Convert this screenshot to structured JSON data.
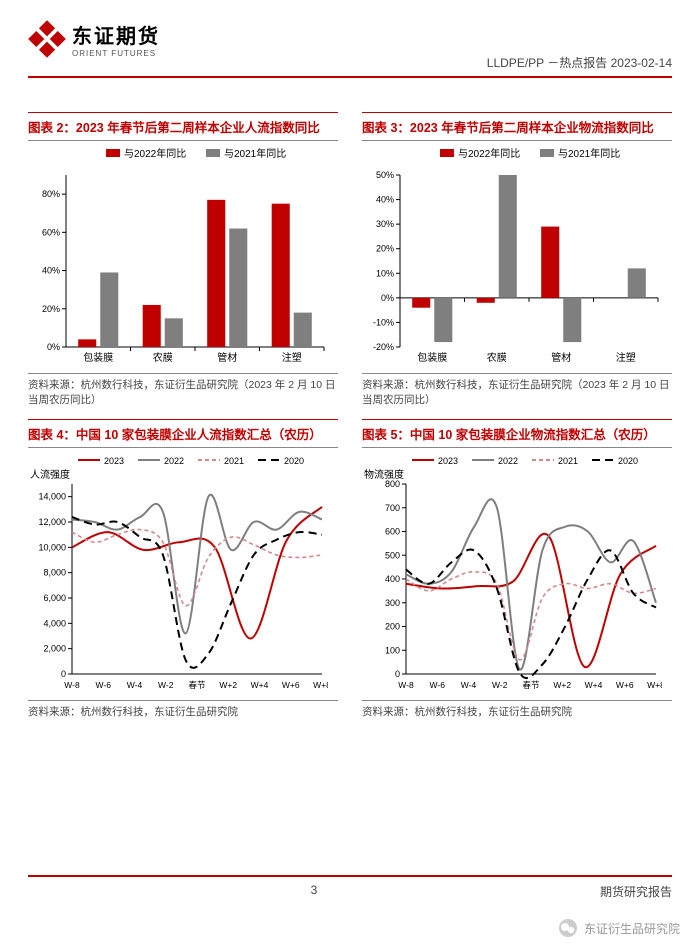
{
  "header": {
    "brand_cn": "东证期货",
    "brand_en": "ORIENT FUTURES",
    "right": "LLDPE/PP －热点报告 2023-02-14"
  },
  "footer": {
    "page": "3",
    "right": "期货研究报告",
    "watermark": "东证衍生品研究院"
  },
  "chart2": {
    "type": "bar",
    "title": "图表 2：2023 年春节后第二周样本企业人流指数同比",
    "legend": [
      {
        "label": "与2022年同比",
        "color": "#c00000"
      },
      {
        "label": "与2021年同比",
        "color": "#7f7f7f"
      }
    ],
    "categories": [
      "包装膜",
      "农膜",
      "管材",
      "注塑"
    ],
    "series": [
      {
        "color": "#c00000",
        "values": [
          4,
          22,
          77,
          75
        ]
      },
      {
        "color": "#7f7f7f",
        "values": [
          39,
          15,
          62,
          18
        ]
      }
    ],
    "ylim": [
      0,
      90
    ],
    "yticks": [
      0,
      20,
      40,
      60,
      80
    ],
    "ytick_suffix": "%",
    "bg": "#ffffff",
    "tick_fs": 9,
    "source": "资料来源：杭州数行科技，东证衍生品研究院（2023 年 2 月 10 日当周农历同比）"
  },
  "chart3": {
    "type": "bar",
    "title": "图表 3：2023 年春节后第二周样本企业物流指数同比",
    "legend": [
      {
        "label": "与2022年同比",
        "color": "#c00000"
      },
      {
        "label": "与2021年同比",
        "color": "#7f7f7f"
      }
    ],
    "categories": [
      "包装膜",
      "农膜",
      "管材",
      "注塑"
    ],
    "series": [
      {
        "color": "#c00000",
        "values": [
          -4,
          -2,
          29,
          0
        ]
      },
      {
        "color": "#7f7f7f",
        "values": [
          -18,
          50,
          -18,
          12
        ]
      }
    ],
    "ylim": [
      -20,
      50
    ],
    "yticks": [
      -20,
      -10,
      0,
      10,
      20,
      30,
      40,
      50
    ],
    "ytick_suffix": "%",
    "bg": "#ffffff",
    "tick_fs": 9,
    "source": "资料来源：杭州数行科技，东证衍生品研究院（2023 年 2 月 10 日当周农历同比）"
  },
  "chart4": {
    "type": "line",
    "title": "图表 4：中国 10 家包装膜企业人流指数汇总（农历）",
    "ylabel": "人流强度",
    "legend": [
      {
        "label": "2023",
        "color": "#c00000",
        "dash": "solid"
      },
      {
        "label": "2022",
        "color": "#7f7f7f",
        "dash": "solid"
      },
      {
        "label": "2021",
        "color": "#d48a8a",
        "dash": "4,3"
      },
      {
        "label": "2020",
        "color": "#000000",
        "dash": "8,5"
      }
    ],
    "xcats": [
      "W-8",
      "W-6",
      "W-4",
      "W-2",
      "春节",
      "W+2",
      "W+4",
      "W+6",
      "W+8"
    ],
    "ylim": [
      0,
      15000
    ],
    "yticks": [
      0,
      2000,
      4000,
      6000,
      8000,
      10000,
      12000,
      14000
    ],
    "series": [
      {
        "color": "#c00000",
        "dash": "",
        "width": 2,
        "values": [
          10000,
          11200,
          9800,
          10400,
          10000,
          2800,
          10500,
          13200
        ]
      },
      {
        "color": "#7f7f7f",
        "dash": "",
        "width": 2,
        "values": [
          12200,
          12000,
          11400,
          12400,
          12800,
          3200,
          14000,
          9800,
          12000,
          11400,
          12800,
          12200
        ]
      },
      {
        "color": "#d48a8a",
        "dash": "4,3",
        "width": 1.6,
        "values": [
          11200,
          10400,
          11000,
          11400,
          10400,
          5400,
          9200,
          10800,
          10200,
          9400,
          9200,
          9400
        ]
      },
      {
        "color": "#000000",
        "dash": "8,5",
        "width": 2,
        "values": [
          12400,
          11800,
          12000,
          10800,
          9400,
          1100,
          1600,
          5600,
          9400,
          10600,
          11200,
          11000
        ]
      }
    ],
    "source": "资料来源：杭州数行科技，东证衍生品研究院"
  },
  "chart5": {
    "type": "line",
    "title": "图表 5：中国 10 家包装膜企业物流指数汇总（农历）",
    "ylabel": "物流强度",
    "legend": [
      {
        "label": "2023",
        "color": "#c00000",
        "dash": "solid"
      },
      {
        "label": "2022",
        "color": "#7f7f7f",
        "dash": "solid"
      },
      {
        "label": "2021",
        "color": "#d48a8a",
        "dash": "4,3"
      },
      {
        "label": "2020",
        "color": "#000000",
        "dash": "8,5"
      }
    ],
    "xcats": [
      "W-8",
      "W-6",
      "W-4",
      "W-2",
      "春节",
      "W+2",
      "W+4",
      "W+6",
      "W+8"
    ],
    "ylim": [
      0,
      800
    ],
    "yticks": [
      0,
      100,
      200,
      300,
      400,
      500,
      600,
      700,
      800
    ],
    "series": [
      {
        "color": "#c00000",
        "dash": "",
        "width": 2,
        "values": [
          380,
          360,
          370,
          390,
          580,
          30,
          420,
          540
        ]
      },
      {
        "color": "#7f7f7f",
        "dash": "",
        "width": 2,
        "values": [
          420,
          380,
          430,
          620,
          700,
          20,
          520,
          620,
          600,
          470,
          560,
          300
        ]
      },
      {
        "color": "#d48a8a",
        "dash": "4,3",
        "width": 1.6,
        "values": [
          400,
          350,
          400,
          430,
          380,
          60,
          320,
          380,
          360,
          380,
          340,
          360
        ]
      },
      {
        "color": "#000000",
        "dash": "8,5",
        "width": 2,
        "values": [
          440,
          380,
          470,
          520,
          360,
          5,
          40,
          200,
          400,
          520,
          340,
          280
        ]
      }
    ],
    "source": "资料来源：杭州数行科技，东证衍生品研究院"
  }
}
